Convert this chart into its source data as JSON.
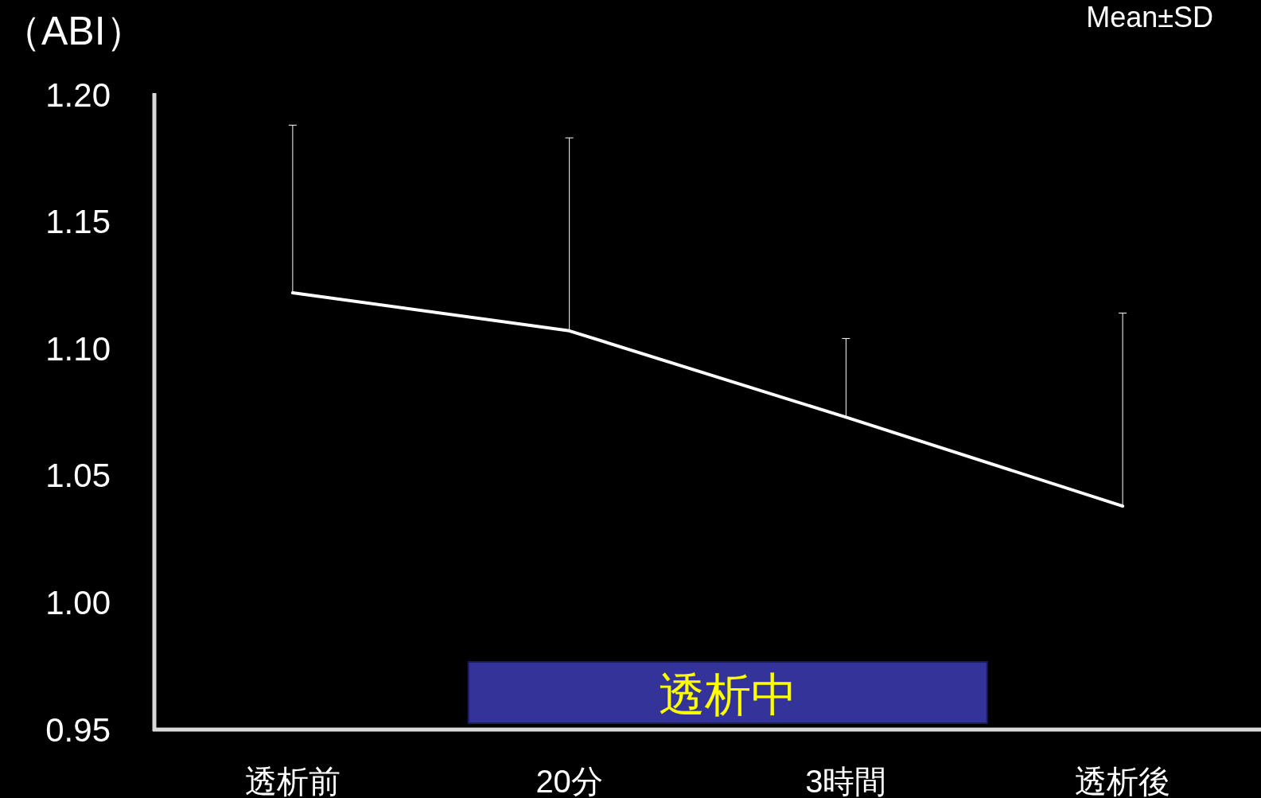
{
  "chart_data": {
    "type": "line",
    "ylabel": "（ABI）",
    "categories": [
      "透析前",
      "20分",
      "3時間",
      "透析後"
    ],
    "series": [
      {
        "color": "#ffffff",
        "values": [
          1.122,
          1.107,
          1.073,
          1.038
        ],
        "errors": [
          [
            1.122,
            1.188
          ],
          [
            1.107,
            1.183
          ],
          [
            1.073,
            1.104
          ],
          [
            1.038,
            1.114
          ]
        ]
      }
    ],
    "ylim": [
      0.95,
      1.2
    ],
    "yticks": [
      {
        "value": 0.95,
        "label": "0.95"
      },
      {
        "value": 1.0,
        "label": "1.00"
      },
      {
        "value": 1.05,
        "label": "1.05"
      },
      {
        "value": 1.1,
        "label": "1.10"
      },
      {
        "value": 1.15,
        "label": "1.15"
      },
      {
        "value": 1.2,
        "label": "1.20"
      }
    ],
    "grid": false,
    "marker": "none",
    "line_style": "solid",
    "annotations": [
      "Mean±SD",
      "透析中"
    ]
  }
}
